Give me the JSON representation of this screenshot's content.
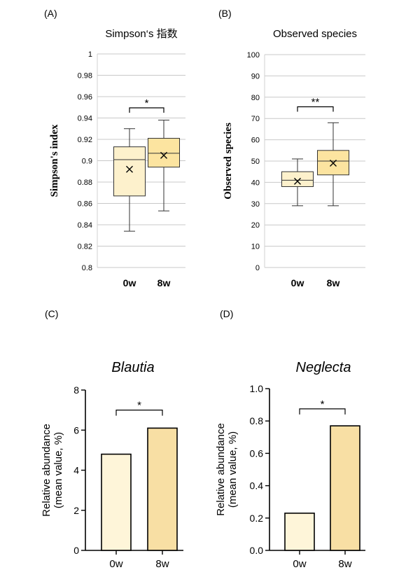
{
  "chart_data": [
    {
      "type": "box",
      "panel_label": "(A)",
      "title": "Simpson‘s 指数",
      "ylabel": "Simpson's index",
      "xlabel": "",
      "ylim": [
        0.8,
        1.0
      ],
      "yticks": [
        0.8,
        0.82,
        0.84,
        0.86,
        0.88,
        0.9,
        0.92,
        0.94,
        0.96,
        0.98,
        1
      ],
      "ytick_labels": [
        "0.8",
        "0.82",
        "0.84",
        "0.86",
        "0.88",
        "0.9",
        "0.92",
        "0.94",
        "0.96",
        "0.98",
        "1"
      ],
      "gridlines": true,
      "categories": [
        "0w",
        "8w"
      ],
      "boxes": [
        {
          "min": 0.834,
          "q1": 0.867,
          "median": 0.901,
          "q3": 0.913,
          "max": 0.93,
          "mean": 0.892,
          "color": "#FDF1CC"
        },
        {
          "min": 0.853,
          "q1": 0.894,
          "median": 0.907,
          "q3": 0.921,
          "max": 0.938,
          "mean": 0.905,
          "color": "#FCE4A0"
        }
      ],
      "significance": {
        "label": "*",
        "y": 0.9495
      }
    },
    {
      "type": "box",
      "panel_label": "(B)",
      "title": "Observed species",
      "ylabel": "Observed species",
      "xlabel": "",
      "ylim": [
        0,
        100
      ],
      "yticks": [
        0,
        10,
        20,
        30,
        40,
        50,
        60,
        70,
        80,
        90,
        100
      ],
      "ytick_labels": [
        "0",
        "10",
        "20",
        "30",
        "40",
        "50",
        "60",
        "70",
        "80",
        "90",
        "100"
      ],
      "gridlines": true,
      "categories": [
        "0w",
        "8w"
      ],
      "boxes": [
        {
          "min": 29,
          "q1": 38,
          "median": 41,
          "q3": 45,
          "max": 51,
          "mean": 40.5,
          "color": "#FDF1CC"
        },
        {
          "min": 29,
          "q1": 43.5,
          "median": 50,
          "q3": 55,
          "max": 68,
          "mean": 49,
          "color": "#FCE4A0"
        }
      ],
      "significance": {
        "label": "**",
        "y": 75.5
      }
    },
    {
      "type": "bar",
      "panel_label": "(C)",
      "title": "Blautia",
      "ylabel": "Relative abundance\n(mean value, %)",
      "ylabel_lines": [
        "Relative abundance",
        "(mean value, %)"
      ],
      "xlabel": "",
      "ylim": [
        0,
        8
      ],
      "yticks": [
        0,
        2,
        4,
        6,
        8
      ],
      "ytick_labels": [
        "0",
        "2",
        "4",
        "6",
        "8"
      ],
      "gridlines": false,
      "categories": [
        "0w",
        "8w"
      ],
      "values": [
        4.8,
        6.1
      ],
      "colors": [
        "#FEF5D9",
        "#F8DFA4"
      ],
      "significance": {
        "label": "*",
        "y": 7.0
      }
    },
    {
      "type": "bar",
      "panel_label": "(D)",
      "title": "Neglecta",
      "ylabel": "Relative abundance\n(mean value, %)",
      "ylabel_lines": [
        "Relative abundance",
        "(mean value, %)"
      ],
      "xlabel": "",
      "ylim": [
        0,
        1.0
      ],
      "yticks": [
        0,
        0.2,
        0.4,
        0.6,
        0.8,
        1.0
      ],
      "ytick_labels": [
        "0.0",
        "0.2",
        "0.4",
        "0.6",
        "0.8",
        "1.0"
      ],
      "gridlines": false,
      "categories": [
        "0w",
        "8w"
      ],
      "values": [
        0.23,
        0.77
      ],
      "colors": [
        "#FEF5D9",
        "#F8DFA4"
      ],
      "significance": {
        "label": "*",
        "y": 0.875
      }
    }
  ]
}
